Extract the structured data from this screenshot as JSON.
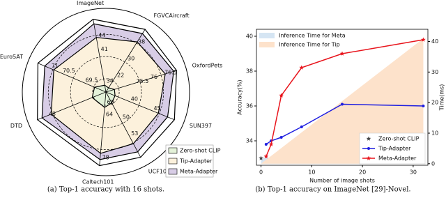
{
  "chart_data": [
    {
      "type": "radar",
      "caption": "(a) Top-1 accuracy with 16 shots.",
      "legend": "lower right",
      "axes": [
        {
          "name": "ImageNet",
          "lim": [
            32,
            48
          ],
          "ticks": [
            34,
            41,
            44
          ]
        },
        {
          "name": "FGVCAircraft",
          "lim": [
            15,
            45
          ],
          "ticks": [
            22,
            30,
            38
          ]
        },
        {
          "name": "OxfordPets",
          "lim": [
            74.5,
            77
          ],
          "ticks": [
            75.5,
            76,
            76.5
          ]
        },
        {
          "name": "SUN397",
          "lim": [
            35,
            50
          ],
          "ticks": [
            40,
            45
          ]
        },
        {
          "name": "UCF101",
          "lim": [
            45,
            57
          ],
          "ticks": [
            50,
            53
          ]
        },
        {
          "name": "Caltech101",
          "lim": [
            56,
            80
          ],
          "ticks": [
            60,
            64,
            78
          ]
        },
        {
          "name": "DTD",
          "lim": [
            35,
            50
          ],
          "ticks": [
            48
          ]
        },
        {
          "name": "EuroSAT",
          "lim": [
            68.5,
            71.5
          ],
          "ticks": [
            69.5,
            70.5,
            71
          ]
        }
      ],
      "series": [
        {
          "name": "Meta-Adapter",
          "color": "#d8cde6",
          "values": [
            47,
            43,
            76.9,
            48.5,
            56,
            78,
            49,
            71.2
          ]
        },
        {
          "name": "Tip-Adapter",
          "color": "#fcf1dc",
          "values": [
            44,
            39,
            76.6,
            46.5,
            54.5,
            76,
            47,
            70.8
          ]
        },
        {
          "name": "Zero-shot CLIP",
          "color": "#e4f2d9",
          "values": [
            33.5,
            17,
            74.8,
            37,
            47,
            61,
            38,
            69
          ]
        }
      ]
    },
    {
      "type": "line",
      "caption": "(b) Top-1 accuracy on ImageNet [29]-Novel.",
      "x_label": "Number of image shots",
      "y_label": "Accuracy(%)",
      "y2_label": "Time(ms)",
      "xlim": [
        -0.9,
        32.9
      ],
      "xticks": [
        0,
        10,
        20,
        30
      ],
      "ylim": [
        32.6,
        40.4
      ],
      "yticks": [
        34,
        36,
        38,
        40
      ],
      "y2lim": [
        -0.5,
        44
      ],
      "y2ticks": [
        0,
        10,
        20,
        30,
        40
      ],
      "series": [
        {
          "name": "Inference Time for Meta",
          "style": "area",
          "axis": "y2",
          "color": "#d5e5f3",
          "legend": "upper left",
          "x": [
            0,
            32
          ],
          "values": [
            2,
            2
          ]
        },
        {
          "name": "Inference Time for Tip",
          "style": "area",
          "axis": "y2",
          "color": "#fde2cb",
          "legend": "upper left",
          "x": [
            0,
            32
          ],
          "values": [
            0,
            41
          ]
        },
        {
          "name": "Zero-shot CLIP",
          "style": "line",
          "marker": "star",
          "color": "#444444",
          "legend": "lower right",
          "x": [
            0
          ],
          "values": [
            33.0
          ]
        },
        {
          "name": "Tip-Adapter",
          "style": "line",
          "marker": "circle",
          "color": "#1f1fe0",
          "legend": "lower right",
          "x": [
            1,
            2,
            4,
            8,
            16,
            32
          ],
          "values": [
            33.8,
            34.0,
            34.2,
            34.8,
            36.1,
            36.0
          ]
        },
        {
          "name": "Meta-Adapter",
          "style": "line",
          "marker": "star",
          "color": "#e8141c",
          "legend": "lower right",
          "x": [
            1,
            2,
            4,
            8,
            16,
            32
          ],
          "values": [
            33.1,
            33.8,
            36.6,
            38.2,
            39.0,
            39.8
          ]
        }
      ]
    }
  ]
}
